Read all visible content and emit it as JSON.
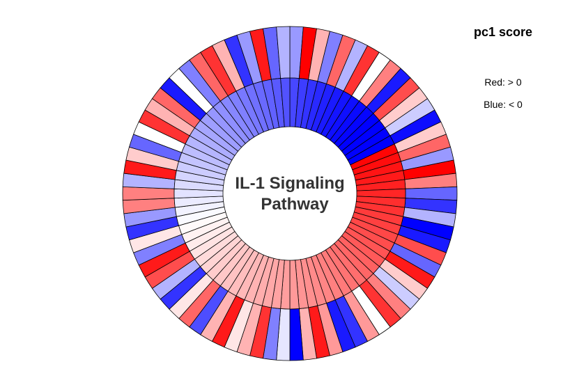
{
  "legend": {
    "title": "pc1 score",
    "red_label": "Red: > 0",
    "blue_label": "Blue: < 0"
  },
  "colors": {
    "positive": "#ff0000",
    "negative": "#0000ff",
    "neutral": "#ffffff",
    "outline": "#000000"
  },
  "chart_data": {
    "type": "radial-heatmap",
    "title_lines": [
      "IL-1 Signaling",
      "Pathway"
    ],
    "color_scale": {
      "min": -1,
      "max": 1
    },
    "inner_ring": [
      -0.72,
      -0.76,
      -0.8,
      -0.84,
      -0.87,
      -0.9,
      -0.92,
      -0.94,
      -0.96,
      -0.98,
      -1.0,
      -1.0,
      -1.0,
      -1.0,
      0.98,
      0.95,
      0.92,
      0.9,
      0.87,
      0.85,
      0.82,
      0.8,
      0.77,
      0.75,
      0.72,
      0.7,
      0.67,
      0.65,
      0.62,
      0.6,
      0.57,
      0.55,
      0.52,
      0.5,
      0.48,
      0.46,
      0.44,
      0.42,
      0.4,
      0.38,
      0.36,
      0.34,
      0.32,
      0.3,
      0.28,
      0.26,
      0.24,
      0.22,
      0.2,
      0.17,
      0.14,
      0.11,
      0.08,
      0.05,
      0.02,
      -0.02,
      -0.05,
      -0.08,
      -0.11,
      -0.14,
      -0.17,
      -0.2,
      -0.23,
      -0.26,
      -0.29,
      -0.32,
      -0.35,
      -0.38,
      -0.41,
      -0.44,
      -0.47,
      -0.5,
      -0.53,
      -0.56,
      -0.59,
      -0.62,
      -0.65,
      -0.68
    ],
    "outer_ring": [
      -0.4,
      1.0,
      0.3,
      -0.5,
      0.6,
      -0.3,
      0.8,
      0.0,
      0.5,
      -0.9,
      0.7,
      0.2,
      -0.2,
      -0.95,
      0.2,
      0.6,
      -0.4,
      1.0,
      0.5,
      -0.6,
      -0.8,
      -0.3,
      -1.0,
      -0.9,
      0.7,
      -0.6,
      0.9,
      0.2,
      -0.2,
      0.5,
      0.8,
      0.0,
      0.4,
      -0.8,
      -0.9,
      0.4,
      0.9,
      0.3,
      -1.0,
      -0.1,
      -0.5,
      0.8,
      0.3,
      0.1,
      0.9,
      0.3,
      -0.7,
      0.6,
      0.1,
      -0.8,
      -0.3,
      0.7,
      0.9,
      -0.5,
      0.1,
      -0.8,
      -0.4,
      0.5,
      0.5,
      -0.3,
      0.9,
      0.2,
      -0.6,
      0.0,
      0.8,
      0.3,
      0.6,
      -0.9,
      0.0,
      -0.5,
      0.6,
      0.8,
      0.3,
      -0.8,
      -0.4,
      0.9,
      -0.6,
      -0.3
    ]
  }
}
